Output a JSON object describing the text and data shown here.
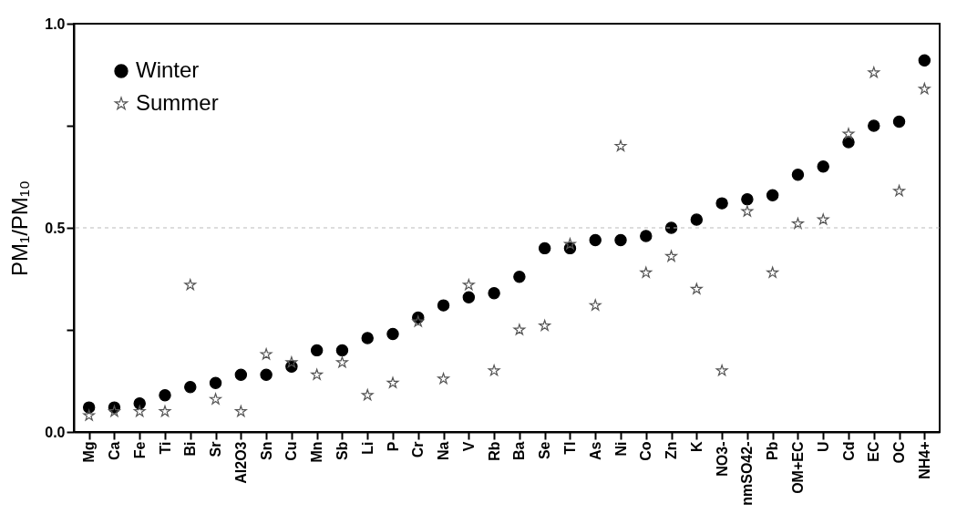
{
  "chart_data": {
    "type": "scatter",
    "ylabel": "PM₁/PM₁₀",
    "categories": [
      "Mg",
      "Ca",
      "Fe",
      "Ti",
      "Bi",
      "Sr",
      "Al2O3",
      "Sn",
      "Cu",
      "Mn",
      "Sb",
      "Li",
      "P",
      "Cr",
      "Na",
      "V",
      "Rb",
      "Ba",
      "Se",
      "Tl",
      "As",
      "Ni",
      "Co",
      "Zn",
      "K",
      "NO3-",
      "nmSO42-",
      "Pb",
      "OM+EC",
      "U",
      "Cd",
      "EC",
      "OC",
      "NH4+"
    ],
    "series": [
      {
        "name": "Winter",
        "color": "#000000",
        "marker": "circle",
        "values": [
          0.06,
          0.06,
          0.07,
          0.09,
          0.11,
          0.12,
          0.14,
          0.14,
          0.16,
          0.2,
          0.2,
          0.23,
          0.24,
          0.28,
          0.31,
          0.33,
          0.34,
          0.38,
          0.45,
          0.45,
          0.47,
          0.47,
          0.48,
          0.5,
          0.52,
          0.56,
          0.57,
          0.58,
          0.63,
          0.65,
          0.71,
          0.75,
          0.76,
          0.91
        ]
      },
      {
        "name": "Summer",
        "color": "#555555",
        "marker": "star",
        "values": [
          0.04,
          0.05,
          0.05,
          0.05,
          0.36,
          0.08,
          0.05,
          0.19,
          0.17,
          0.14,
          0.17,
          0.09,
          0.12,
          0.27,
          0.13,
          0.36,
          0.15,
          0.25,
          0.26,
          0.46,
          0.31,
          0.7,
          0.39,
          0.43,
          0.35,
          0.15,
          0.54,
          0.39,
          0.51,
          0.52,
          0.73,
          0.88,
          0.59,
          0.84
        ]
      }
    ],
    "ylim": [
      0,
      1
    ],
    "yticks": [
      {
        "value": 0,
        "label": "0.0"
      },
      {
        "value": 0.25,
        "label": null
      },
      {
        "value": 0.5,
        "label": "0.5"
      },
      {
        "value": 0.75,
        "label": null
      },
      {
        "value": 1,
        "label": "1.0"
      }
    ],
    "ref_lines": [
      {
        "axis": "y",
        "value": 0.5,
        "color": "#bbbbbb",
        "line_style": "dashed"
      }
    ],
    "legend": "top left",
    "grid": false
  }
}
